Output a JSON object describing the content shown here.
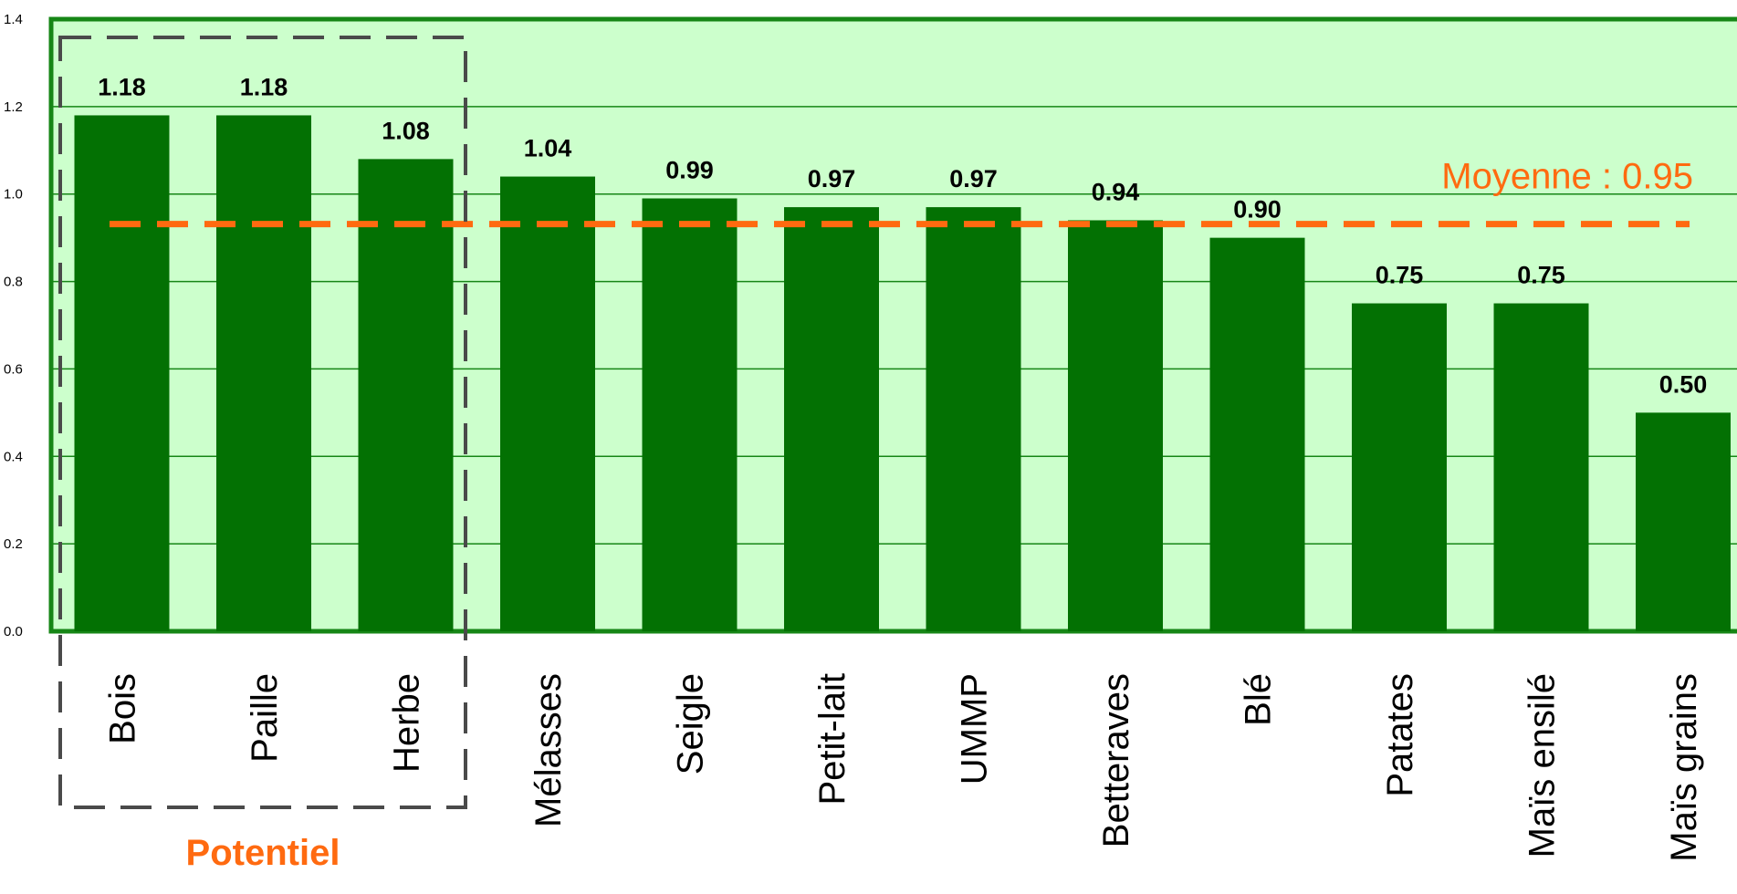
{
  "chart_data": {
    "type": "bar",
    "categories": [
      "Bois",
      "Paille",
      "Herbe",
      "Mélasses",
      "Seigle",
      "Petit-lait",
      "UMMP",
      "Betteraves",
      "Blé",
      "Patates",
      "Maïs ensilé",
      "Maïs grains"
    ],
    "values": [
      1.18,
      1.18,
      1.08,
      1.04,
      0.99,
      0.97,
      0.97,
      0.94,
      0.9,
      0.75,
      0.75,
      0.5
    ],
    "value_labels": [
      "1.18",
      "1.18",
      "1.08",
      "1.04",
      "0.99",
      "0.97",
      "0.97",
      "0.94",
      "0.90",
      "0.75",
      "0.75",
      "0.50"
    ],
    "ylim": [
      0,
      1.4
    ],
    "yticks": [
      "0.0",
      "0.2",
      "0.4",
      "0.6",
      "0.8",
      "1.0",
      "1.2",
      "1.4"
    ],
    "grid": true,
    "reference_line": {
      "value": 0.95,
      "label": "Moyenne : 0.95"
    },
    "group_annotation": {
      "label": "Potentiel",
      "categories": [
        "Bois",
        "Paille",
        "Herbe"
      ]
    }
  },
  "colors": {
    "bar": "#037103",
    "plot_background": "#ccffcc",
    "plot_border": "#168616",
    "gridline": "#168616",
    "mean_line": "#ff6a10",
    "annotation_text": "#ff6a10",
    "group_box": "#4a4a4a"
  }
}
